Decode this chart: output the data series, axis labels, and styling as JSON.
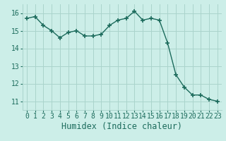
{
  "x": [
    0,
    1,
    2,
    3,
    4,
    5,
    6,
    7,
    8,
    9,
    10,
    11,
    12,
    13,
    14,
    15,
    16,
    17,
    18,
    19,
    20,
    21,
    22,
    23
  ],
  "y": [
    15.7,
    15.8,
    15.3,
    15.0,
    14.6,
    14.9,
    15.0,
    14.7,
    14.7,
    14.8,
    15.3,
    15.6,
    15.7,
    16.1,
    15.6,
    15.7,
    15.6,
    14.3,
    12.5,
    11.8,
    11.35,
    11.35,
    11.1,
    11.0
  ],
  "xlabel": "Humidex (Indice chaleur)",
  "ylim": [
    10.5,
    16.5
  ],
  "xlim": [
    -0.5,
    23.5
  ],
  "yticks": [
    11,
    12,
    13,
    14,
    15,
    16
  ],
  "xticks": [
    0,
    1,
    2,
    3,
    4,
    5,
    6,
    7,
    8,
    9,
    10,
    11,
    12,
    13,
    14,
    15,
    16,
    17,
    18,
    19,
    20,
    21,
    22,
    23
  ],
  "line_color": "#1c6b5c",
  "marker_color": "#1c6b5c",
  "bg_color": "#cceee8",
  "grid_color": "#aad4cc",
  "xlabel_fontsize": 8.5,
  "tick_fontsize": 7.0
}
